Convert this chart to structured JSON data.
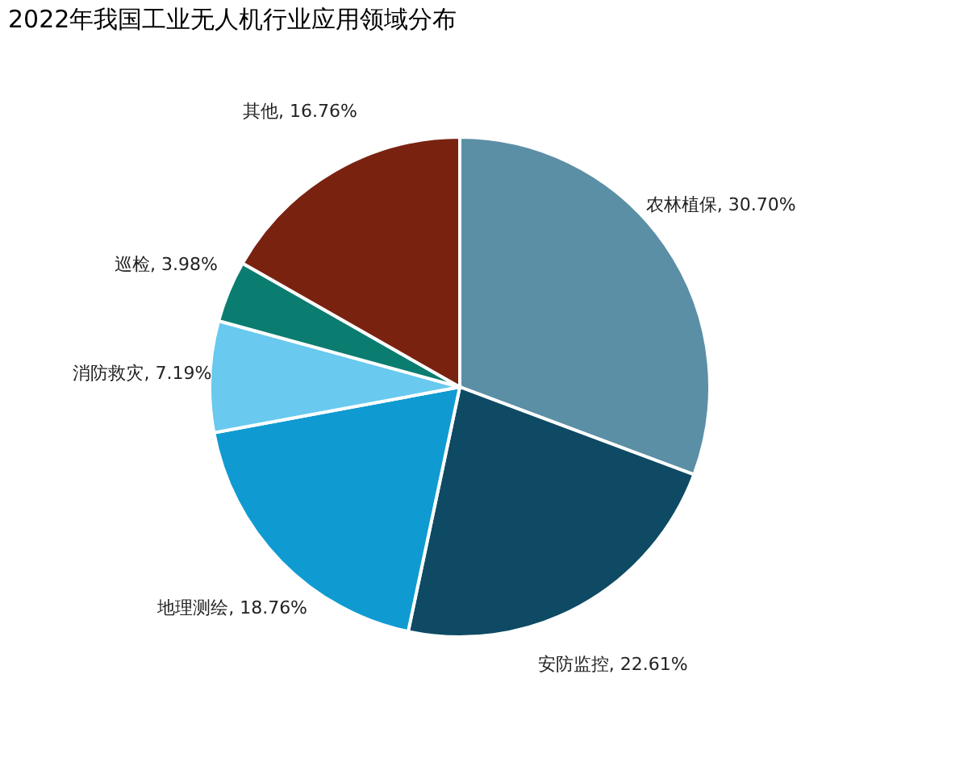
{
  "chart_data": {
    "type": "pie",
    "title": "2022年我国工业无人机行业应用领域分布",
    "categories": [
      "农林植保",
      "安防监控",
      "地理测绘",
      "消防救灾",
      "巡检",
      "其他"
    ],
    "values": [
      30.7,
      22.61,
      18.76,
      7.19,
      3.98,
      16.76
    ],
    "value_labels": [
      "30.70%",
      "22.61%",
      "18.76%",
      "7.19%",
      "3.98%",
      "16.76%"
    ],
    "colors": [
      "#5b8fa6",
      "#0e4a63",
      "#0f9bd1",
      "#69c9ee",
      "#0b7d70",
      "#7a2210"
    ],
    "legend": false
  }
}
